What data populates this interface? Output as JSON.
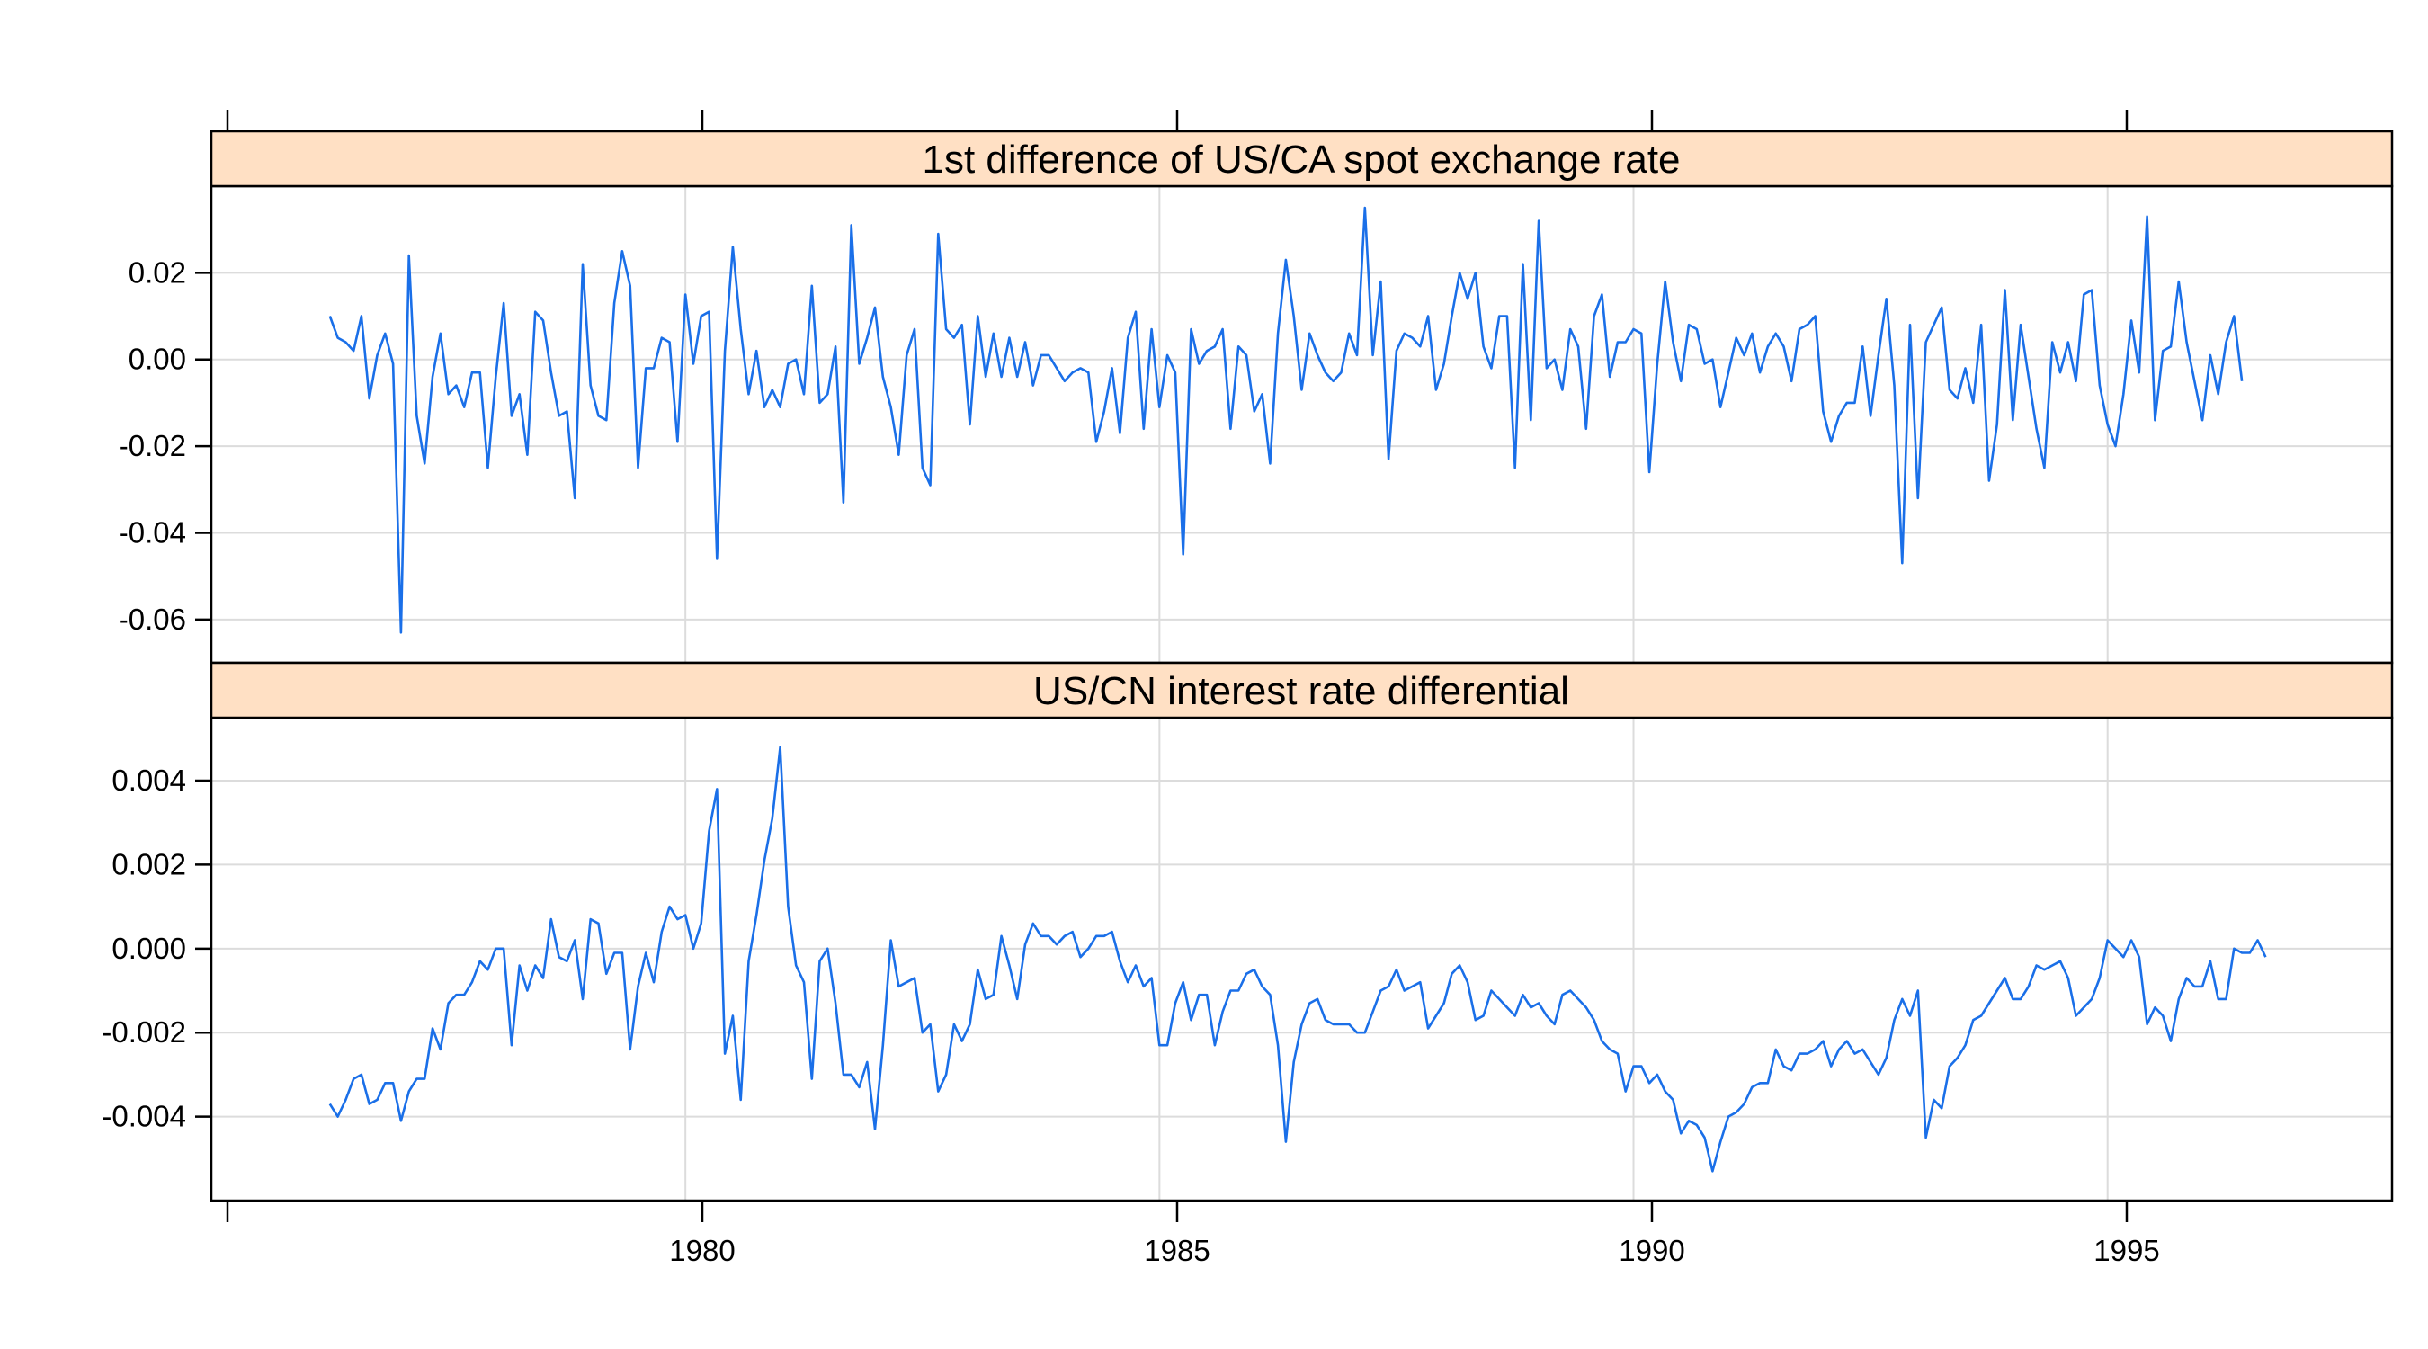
{
  "colors": {
    "line": "#1a6fe8",
    "strip": "#ffe0c4",
    "grid": "#dcdcdc"
  },
  "chart_data": {
    "type": "line",
    "layout": "lattice, two stacked panels sharing x axis",
    "grid": true,
    "x_axis": {
      "ticks": [
        1980,
        1985,
        1990,
        1995
      ],
      "range": [
        1975,
        1998
      ]
    },
    "panels": [
      {
        "strip_title": "1st difference of US/CA spot exchange rate",
        "y_ticks": [
          0.02,
          0.0,
          -0.02,
          -0.04,
          -0.06
        ],
        "y_tick_labels": [
          "0.02",
          "0.00",
          "-0.02",
          "-0.04",
          "-0.06"
        ],
        "y_range": [
          -0.07,
          0.04
        ],
        "series": {
          "start_year": 1976.25,
          "step": 0.0833333,
          "values": [
            0.01,
            0.005,
            0.004,
            0.002,
            0.01,
            -0.009,
            0.001,
            0.006,
            -0.001,
            -0.063,
            0.024,
            -0.013,
            -0.024,
            -0.004,
            0.006,
            -0.008,
            -0.006,
            -0.011,
            -0.003,
            -0.003,
            -0.025,
            -0.004,
            0.013,
            -0.013,
            -0.008,
            -0.022,
            0.011,
            0.009,
            -0.003,
            -0.013,
            -0.012,
            -0.032,
            0.022,
            -0.006,
            -0.013,
            -0.014,
            0.013,
            0.025,
            0.017,
            -0.025,
            -0.002,
            -0.002,
            0.005,
            0.004,
            -0.019,
            0.015,
            -0.001,
            0.01,
            0.011,
            -0.046,
            0.002,
            0.026,
            0.007,
            -0.008,
            0.002,
            -0.011,
            -0.007,
            -0.011,
            -0.001,
            0.0,
            -0.008,
            0.017,
            -0.01,
            -0.008,
            0.003,
            -0.033,
            0.031,
            -0.001,
            0.005,
            0.012,
            -0.004,
            -0.011,
            -0.022,
            0.001,
            0.007,
            -0.025,
            -0.029,
            0.029,
            0.007,
            0.005,
            0.008,
            -0.015,
            0.01,
            -0.004,
            0.006,
            -0.004,
            0.005,
            -0.004,
            0.004,
            -0.006,
            0.001,
            0.001,
            -0.002,
            -0.005,
            -0.003,
            -0.002,
            -0.003,
            -0.019,
            -0.012,
            -0.002,
            -0.017,
            0.005,
            0.011,
            -0.016,
            0.007,
            -0.011,
            0.001,
            -0.003,
            -0.045,
            0.007,
            -0.001,
            0.002,
            0.003,
            0.007,
            -0.016,
            0.003,
            0.001,
            -0.012,
            -0.008,
            -0.024,
            0.006,
            0.023,
            0.01,
            -0.007,
            0.006,
            0.001,
            -0.003,
            -0.005,
            -0.003,
            0.006,
            0.001,
            0.035,
            0.001,
            0.018,
            -0.023,
            0.002,
            0.006,
            0.005,
            0.003,
            0.01,
            -0.007,
            -0.001,
            0.01,
            0.02,
            0.014,
            0.02,
            0.003,
            -0.002,
            0.01,
            0.01,
            -0.025,
            0.022,
            -0.014,
            0.032,
            -0.002,
            0.0,
            -0.007,
            0.007,
            0.003,
            -0.016,
            0.01,
            0.015,
            -0.004,
            0.004,
            0.004,
            0.007,
            0.006,
            -0.026,
            -0.001,
            0.018,
            0.004,
            -0.005,
            0.008,
            0.007,
            -0.001,
            0.0,
            -0.011,
            -0.003,
            0.005,
            0.001,
            0.006,
            -0.003,
            0.003,
            0.006,
            0.003,
            -0.005,
            0.007,
            0.008,
            0.01,
            -0.012,
            -0.019,
            -0.013,
            -0.01,
            -0.01,
            0.003,
            -0.013,
            0.001,
            0.014,
            -0.006,
            -0.047,
            0.008,
            -0.032,
            0.004,
            0.008,
            0.012,
            -0.007,
            -0.009,
            -0.002,
            -0.01,
            0.008,
            -0.028,
            -0.015,
            0.016,
            -0.014,
            0.008,
            -0.004,
            -0.016,
            -0.025,
            0.004,
            -0.003,
            0.004,
            -0.005,
            0.015,
            0.016,
            -0.006,
            -0.015,
            -0.02,
            -0.008,
            0.009,
            -0.003,
            0.033,
            -0.014,
            0.002,
            0.003,
            0.018,
            0.004,
            -0.005,
            -0.014,
            0.001,
            -0.008,
            0.004,
            0.01,
            -0.005
          ]
        }
      },
      {
        "strip_title": "US/CN interest rate differential",
        "y_ticks": [
          0.004,
          0.002,
          0.0,
          -0.002,
          -0.004
        ],
        "y_tick_labels": [
          "0.004",
          "0.002",
          "0.000",
          "-0.002",
          "-0.004"
        ],
        "y_range": [
          -0.006,
          0.0055
        ],
        "series": {
          "start_year": 1976.25,
          "step": 0.0833333,
          "values": [
            -0.0037,
            -0.004,
            -0.0036,
            -0.0031,
            -0.003,
            -0.0037,
            -0.0036,
            -0.0032,
            -0.0032,
            -0.0041,
            -0.0034,
            -0.0031,
            -0.0031,
            -0.0019,
            -0.0024,
            -0.0013,
            -0.0011,
            -0.0011,
            -0.0008,
            -0.0003,
            -0.0005,
            0.0,
            0.0,
            -0.0023,
            -0.0004,
            -0.001,
            -0.0004,
            -0.0007,
            0.0007,
            -0.0002,
            -0.0003,
            0.0002,
            -0.0012,
            0.0007,
            0.0006,
            -0.0006,
            -0.0001,
            -0.0001,
            -0.0024,
            -0.0009,
            -0.0001,
            -0.0008,
            0.0004,
            0.001,
            0.0007,
            0.0008,
            0.0,
            0.0006,
            0.0028,
            0.0038,
            -0.0025,
            -0.0016,
            -0.0036,
            -0.0003,
            0.0008,
            0.0021,
            0.0031,
            0.0048,
            0.001,
            -0.0004,
            -0.0008,
            -0.0031,
            -0.0003,
            0.0,
            -0.0013,
            -0.003,
            -0.003,
            -0.0033,
            -0.0027,
            -0.0043,
            -0.0023,
            0.0002,
            -0.0009,
            -0.0008,
            -0.0007,
            -0.002,
            -0.0018,
            -0.0034,
            -0.003,
            -0.0018,
            -0.0022,
            -0.0018,
            -0.0005,
            -0.0012,
            -0.0011,
            0.0003,
            -0.0004,
            -0.0012,
            0.0001,
            0.0006,
            0.0003,
            0.0003,
            0.0001,
            0.0003,
            0.0004,
            -0.0002,
            0.0,
            0.0003,
            0.0003,
            0.0004,
            -0.0003,
            -0.0008,
            -0.0004,
            -0.0009,
            -0.0007,
            -0.0023,
            -0.0023,
            -0.0013,
            -0.0008,
            -0.0017,
            -0.0011,
            -0.0011,
            -0.0023,
            -0.0015,
            -0.001,
            -0.001,
            -0.0006,
            -0.0005,
            -0.0009,
            -0.0011,
            -0.0023,
            -0.0046,
            -0.0027,
            -0.0018,
            -0.0013,
            -0.0012,
            -0.0017,
            -0.0018,
            -0.0018,
            -0.0018,
            -0.002,
            -0.002,
            -0.0015,
            -0.001,
            -0.0009,
            -0.0005,
            -0.001,
            -0.0009,
            -0.0008,
            -0.0019,
            -0.0016,
            -0.0013,
            -0.0006,
            -0.0004,
            -0.0008,
            -0.0017,
            -0.0016,
            -0.001,
            -0.0012,
            -0.0014,
            -0.0016,
            -0.0011,
            -0.0014,
            -0.0013,
            -0.0016,
            -0.0018,
            -0.0011,
            -0.001,
            -0.0012,
            -0.0014,
            -0.0017,
            -0.0022,
            -0.0024,
            -0.0025,
            -0.0034,
            -0.0028,
            -0.0028,
            -0.0032,
            -0.003,
            -0.0034,
            -0.0036,
            -0.0044,
            -0.0041,
            -0.0042,
            -0.0045,
            -0.0053,
            -0.0046,
            -0.004,
            -0.0039,
            -0.0037,
            -0.0033,
            -0.0032,
            -0.0032,
            -0.0024,
            -0.0028,
            -0.0029,
            -0.0025,
            -0.0025,
            -0.0024,
            -0.0022,
            -0.0028,
            -0.0024,
            -0.0022,
            -0.0025,
            -0.0024,
            -0.0027,
            -0.003,
            -0.0026,
            -0.0017,
            -0.0012,
            -0.0016,
            -0.001,
            -0.0045,
            -0.0036,
            -0.0038,
            -0.0028,
            -0.0026,
            -0.0023,
            -0.0017,
            -0.0016,
            -0.0013,
            -0.001,
            -0.0007,
            -0.0012,
            -0.0012,
            -0.0009,
            -0.0004,
            -0.0005,
            -0.0004,
            -0.0003,
            -0.0007,
            -0.0016,
            -0.0014,
            -0.0012,
            -0.0007,
            0.0002,
            0.0,
            -0.0002,
            0.0002,
            -0.0002,
            -0.0018,
            -0.0014,
            -0.0016,
            -0.0022,
            -0.0012,
            -0.0007,
            -0.0009,
            -0.0009,
            -0.0003,
            -0.0012,
            -0.0012,
            0.0,
            -0.0001,
            -0.0001,
            0.0002,
            -0.0002
          ]
        }
      }
    ]
  }
}
